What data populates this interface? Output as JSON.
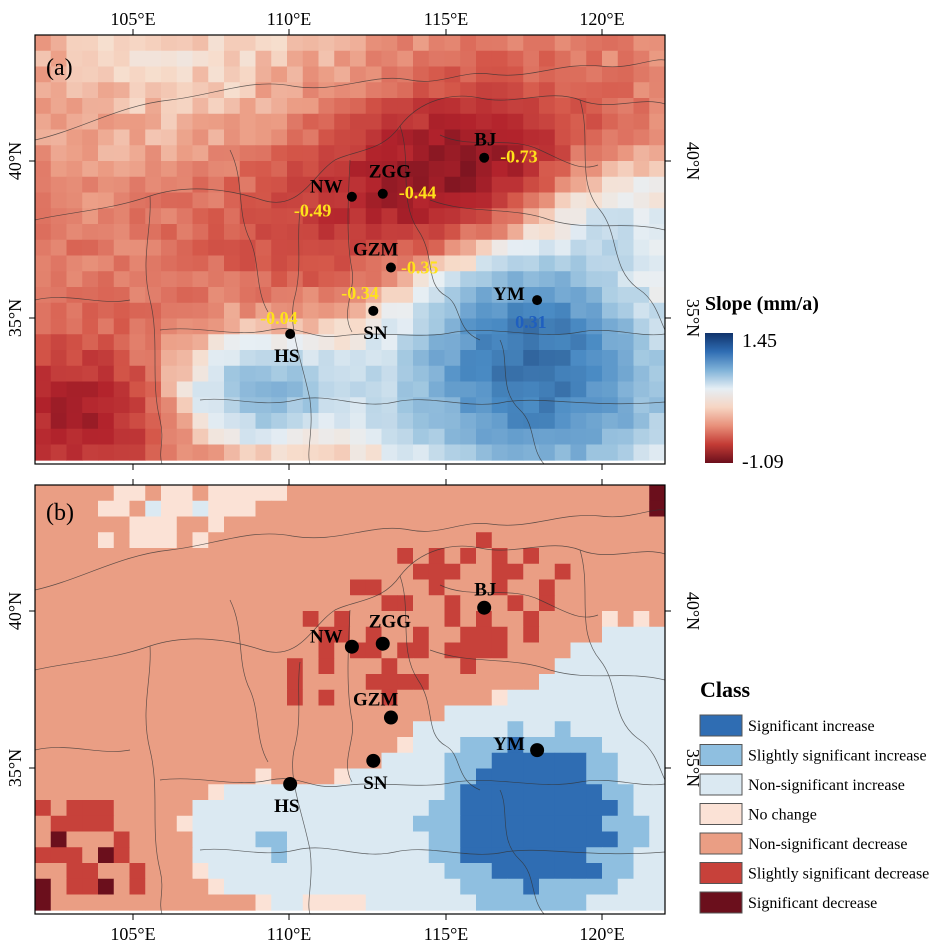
{
  "panels": [
    {
      "id": "a",
      "label": "(a)"
    },
    {
      "id": "b",
      "label": "(b)"
    }
  ],
  "axes": {
    "lon_ticks": [
      "105°E",
      "110°E",
      "115°E",
      "120°E"
    ],
    "lat_ticks": [
      "35°N",
      "40°N"
    ]
  },
  "stations": [
    {
      "code": "BJ",
      "slope": "-0.73"
    },
    {
      "code": "ZGG",
      "slope": "-0.44"
    },
    {
      "code": "NW",
      "slope": "-0.49"
    },
    {
      "code": "GZM",
      "slope": "-0.35"
    },
    {
      "code": "SN",
      "slope": "-0.34"
    },
    {
      "code": "HS",
      "slope": "-0.04"
    },
    {
      "code": "YM",
      "slope": "0.31"
    }
  ],
  "colorbar": {
    "title": "Slope (mm/a)",
    "max": "1.45",
    "min": "-1.09",
    "colors": [
      "#10336b",
      "#2f6db3",
      "#7fb2d8",
      "#e5eef4",
      "#f6d5c3",
      "#e8907a",
      "#c33b35",
      "#6b0f1c"
    ]
  },
  "legend": {
    "title": "Class",
    "items": [
      {
        "label": "Significant increase",
        "color": "#2f6db3"
      },
      {
        "label": "Slightly significant increase",
        "color": "#8fbfe0"
      },
      {
        "label": "Non-significant increase",
        "color": "#dbe9f2"
      },
      {
        "label": "No change",
        "color": "#fbe2d6"
      },
      {
        "label": "Non-significant decrease",
        "color": "#ea9e84"
      },
      {
        "label": "Slightly significant decrease",
        "color": "#c7413a"
      },
      {
        "label": "Significant decrease",
        "color": "#6b0f1c"
      }
    ]
  }
}
